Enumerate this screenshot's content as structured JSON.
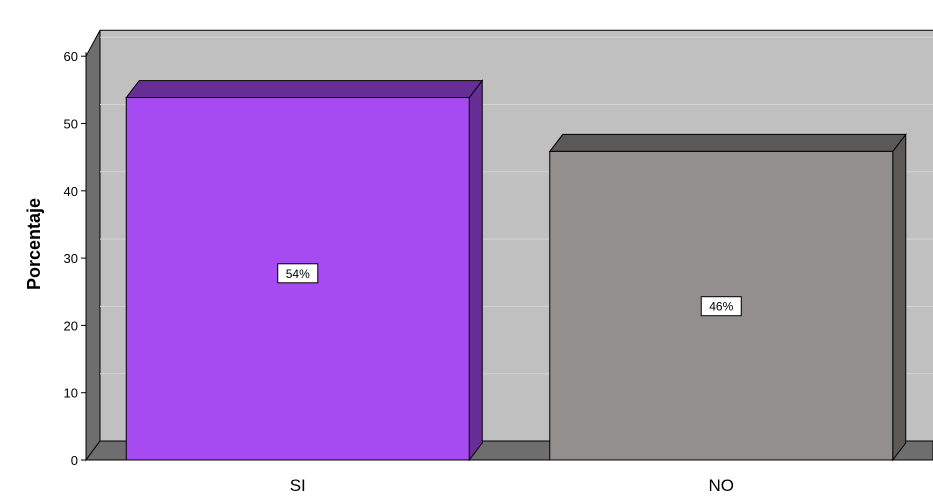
{
  "chart_data": {
    "type": "bar",
    "categories": [
      "SI",
      "NO"
    ],
    "values": [
      54,
      46
    ],
    "data_labels": [
      "54%",
      "46%"
    ],
    "bar_colors": [
      "#a64af2",
      "#938f8e"
    ],
    "ylabel": "Porcentaje",
    "xlabel": "",
    "ylim": [
      0,
      60
    ],
    "yticks": [
      0,
      10,
      20,
      30,
      40,
      50,
      60
    ],
    "grid": true,
    "style": "3d",
    "colors": {
      "plot_background": "#c0c0c0",
      "floor": "#6e6e6e",
      "left_wall": "#6e6e6e",
      "gridline": "#d4d4d4"
    }
  }
}
